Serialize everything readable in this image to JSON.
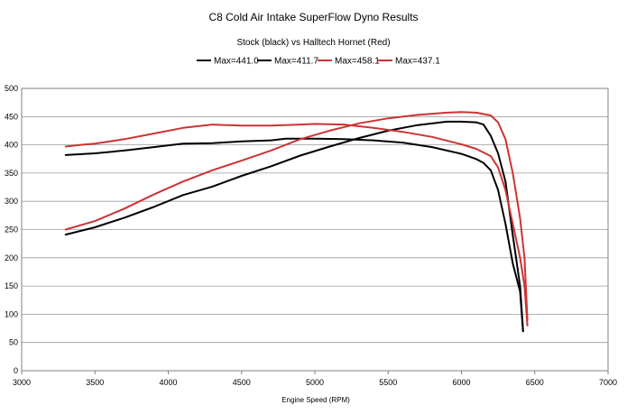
{
  "chart_data": {
    "type": "line",
    "title": "C8 Cold Air Intake SuperFlow Dyno Results",
    "subtitle": "Stock (black) vs Halltech Hornet (Red)",
    "xlabel": "Engine Speed (RPM)",
    "ylabel": "",
    "xlim": [
      3000,
      7000
    ],
    "ylim": [
      0,
      500
    ],
    "xticks": [
      3000,
      3500,
      4000,
      4500,
      5000,
      5500,
      6000,
      6500,
      7000
    ],
    "yticks": [
      0,
      50,
      100,
      150,
      200,
      250,
      300,
      350,
      400,
      450,
      500
    ],
    "grid": "horizontal",
    "legend": "top-right",
    "series": [
      {
        "name": "Max=441.0",
        "color": "#000000",
        "x": [
          3300,
          3500,
          3700,
          3900,
          4100,
          4300,
          4500,
          4700,
          4900,
          5100,
          5300,
          5500,
          5700,
          5900,
          6000,
          6100,
          6150,
          6200,
          6250,
          6300,
          6350,
          6400,
          6420
        ],
        "y": [
          241,
          254,
          271,
          290,
          311,
          326,
          345,
          362,
          381,
          397,
          412,
          425,
          435,
          441,
          441,
          440,
          436,
          416,
          385,
          335,
          240,
          150,
          70
        ]
      },
      {
        "name": "Max=411.7",
        "color": "#000000",
        "x": [
          3300,
          3500,
          3700,
          3900,
          4100,
          4300,
          4500,
          4700,
          4800,
          5000,
          5200,
          5400,
          5600,
          5800,
          6000,
          6100,
          6150,
          6200,
          6250,
          6300,
          6350,
          6400,
          6420
        ],
        "y": [
          382,
          385,
          390,
          396,
          402,
          403,
          406,
          408,
          411,
          411,
          410,
          408,
          404,
          396,
          384,
          375,
          368,
          355,
          320,
          260,
          190,
          140,
          70
        ]
      },
      {
        "name": "Max=458.1",
        "color": "#cc3333",
        "x": [
          3300,
          3500,
          3700,
          3900,
          4100,
          4300,
          4500,
          4700,
          4900,
          5100,
          5300,
          5500,
          5700,
          5900,
          6000,
          6100,
          6200,
          6250,
          6300,
          6350,
          6400,
          6430,
          6450
        ],
        "y": [
          250,
          265,
          287,
          312,
          335,
          355,
          372,
          390,
          410,
          425,
          438,
          447,
          453,
          457,
          458,
          457,
          452,
          440,
          410,
          350,
          270,
          200,
          90
        ]
      },
      {
        "name": "Max=437.1",
        "color": "#cc3333",
        "x": [
          3300,
          3400,
          3500,
          3700,
          3900,
          4100,
          4300,
          4500,
          4700,
          4900,
          5000,
          5200,
          5400,
          5600,
          5800,
          6000,
          6100,
          6200,
          6250,
          6300,
          6350,
          6400,
          6430,
          6450
        ],
        "y": [
          397,
          400,
          402,
          410,
          420,
          430,
          436,
          434,
          434,
          436,
          437,
          436,
          430,
          423,
          414,
          401,
          393,
          380,
          360,
          320,
          260,
          200,
          150,
          80
        ]
      }
    ]
  }
}
